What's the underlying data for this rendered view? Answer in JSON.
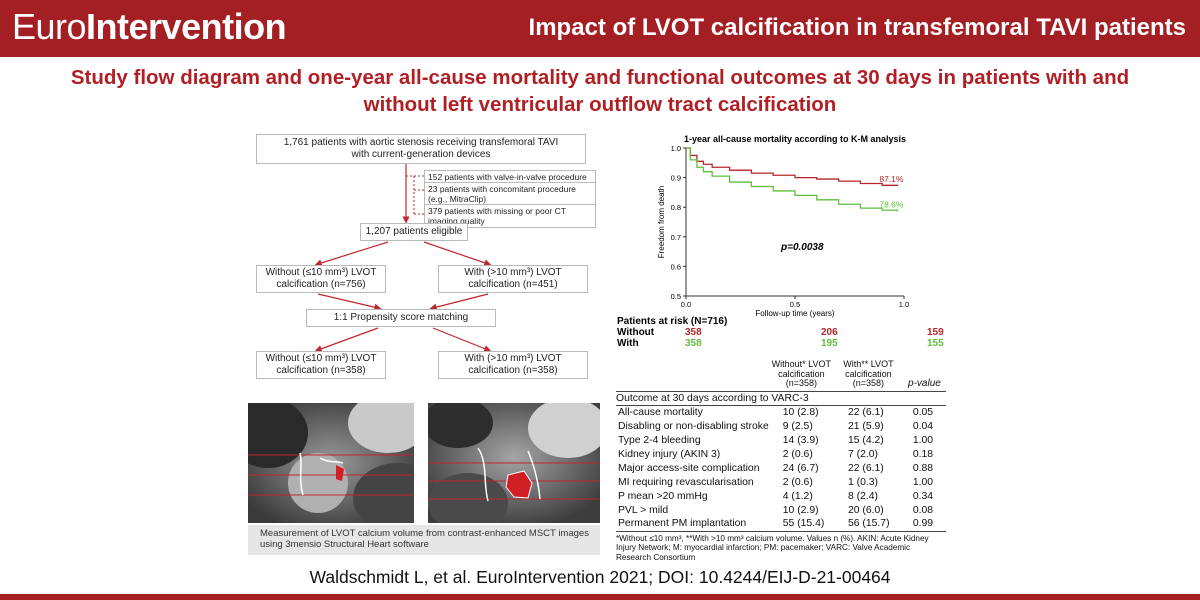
{
  "header": {
    "brand_part1": "Euro",
    "brand_part2": "Intervention",
    "title": "Impact of LVOT calcification in transfemoral TAVI patients"
  },
  "main_title": "Study flow diagram and one-year all-cause mortality and functional outcomes at 30 days in patients with and without left ventricular outflow tract calcification",
  "flow": {
    "top_box": "1,761 patients with aortic stenosis receiving transfemoral TAVI\nwith current-generation devices",
    "exclusions": [
      "152 patients with valve-in-valve procedure",
      "23 patients with concomitant procedure\n(e.g., MitraClip)",
      "379 patients with missing or poor CT\nimaging quality"
    ],
    "eligible": "1,207 patients eligible",
    "without_pre": "Without (≤10 mm³) LVOT\ncalcification (n=756)",
    "with_pre": "With (>10 mm³) LVOT\ncalcification (n=451)",
    "matching": "1:1 Propensity score matching",
    "without_post": "Without (≤10 mm³) LVOT\ncalcification (n=358)",
    "with_post": "With (>10 mm³) LVOT\ncalcification (n=358)"
  },
  "scan_caption": "Measurement of LVOT calcium volume from contrast-enhanced MSCT images using 3mensio Structural Heart software",
  "chart_data": {
    "type": "line",
    "title": "1-year all-cause mortality according to K-M analysis",
    "xlabel": "Follow-up time (years)",
    "ylabel": "Freedom from death",
    "xlim": [
      0,
      1.0
    ],
    "ylim": [
      0.5,
      1.0
    ],
    "xticks": [
      "0.0",
      "0.5",
      "1.0"
    ],
    "yticks": [
      "0.5",
      "0.6",
      "0.7",
      "0.8",
      "0.9",
      "1.0"
    ],
    "annotation": "p=0.0038",
    "series": [
      {
        "color": "#b5262a",
        "end_label": "87.1%",
        "x": [
          0,
          0.02,
          0.05,
          0.08,
          0.12,
          0.2,
          0.3,
          0.4,
          0.5,
          0.6,
          0.7,
          0.8,
          0.9,
          0.97
        ],
        "y": [
          1.0,
          0.975,
          0.955,
          0.945,
          0.935,
          0.925,
          0.915,
          0.908,
          0.9,
          0.895,
          0.888,
          0.88,
          0.874,
          0.871
        ]
      },
      {
        "color": "#5fbf3a",
        "end_label": "78.6%",
        "x": [
          0,
          0.02,
          0.05,
          0.08,
          0.12,
          0.2,
          0.3,
          0.4,
          0.5,
          0.6,
          0.7,
          0.8,
          0.9,
          0.97
        ],
        "y": [
          1.0,
          0.96,
          0.935,
          0.92,
          0.905,
          0.885,
          0.87,
          0.855,
          0.84,
          0.825,
          0.81,
          0.797,
          0.79,
          0.786
        ]
      }
    ]
  },
  "at_risk": {
    "header": "Patients at risk (N=716)",
    "rows": [
      {
        "label": "Without",
        "values": [
          "358",
          "206",
          "159"
        ],
        "color": "#b5262a"
      },
      {
        "label": "With",
        "values": [
          "358",
          "195",
          "155"
        ],
        "color": "#5fbf3a"
      }
    ]
  },
  "outcomes": {
    "col_without": "Without* LVOT\ncalcification\n(n=358)",
    "col_with": "With** LVOT\ncalcification\n(n=358)",
    "col_p": "p-value",
    "section": "Outcome at 30 days according to VARC-3",
    "rows": [
      {
        "label": "All-cause mortality",
        "without": "10 (2.8)",
        "with": "22 (6.1)",
        "p": "0.05"
      },
      {
        "label": "Disabling or non-disabling stroke",
        "without": "9 (2.5)",
        "with": "21 (5.9)",
        "p": "0.04"
      },
      {
        "label": "Type 2-4 bleeding",
        "without": "14 (3.9)",
        "with": "15 (4.2)",
        "p": "1.00"
      },
      {
        "label": "Kidney injury (AKIN 3)",
        "without": "2 (0.6)",
        "with": "7 (2.0)",
        "p": "0.18"
      },
      {
        "label": "Major access-site complication",
        "without": "24 (6.7)",
        "with": "22 (6.1)",
        "p": "0.88"
      },
      {
        "label": "MI requiring revascularisation",
        "without": "2 (0.6)",
        "with": "1 (0.3)",
        "p": "1.00"
      },
      {
        "label": "P mean >20 mmHg",
        "without": "4 (1.2)",
        "with": "8 (2.4)",
        "p": "0.34"
      },
      {
        "label": "PVL > mild",
        "without": "10 (2.9)",
        "with": "20 (6.0)",
        "p": "0.08"
      },
      {
        "label": "Permanent PM implantation",
        "without": "55 (15.4)",
        "with": "56 (15.7)",
        "p": "0.99"
      }
    ],
    "footnote": "*Without ≤10 mm³, **With >10 mm³ calcium volume. Values n (%). AKIN: Acute Kidney Injury Network; M: myocardial infarction; PM: pacemaker; VARC: Valve Academic Research Consortium"
  },
  "citation": "Waldschmidt L, et al. EuroIntervention 2021; DOI: 10.4244/EIJ-D-21-00464",
  "colors": {
    "brand_red": "#a41f23",
    "title_red": "#b11f24",
    "with_green": "#5fbf3a",
    "without_red": "#b5262a"
  }
}
